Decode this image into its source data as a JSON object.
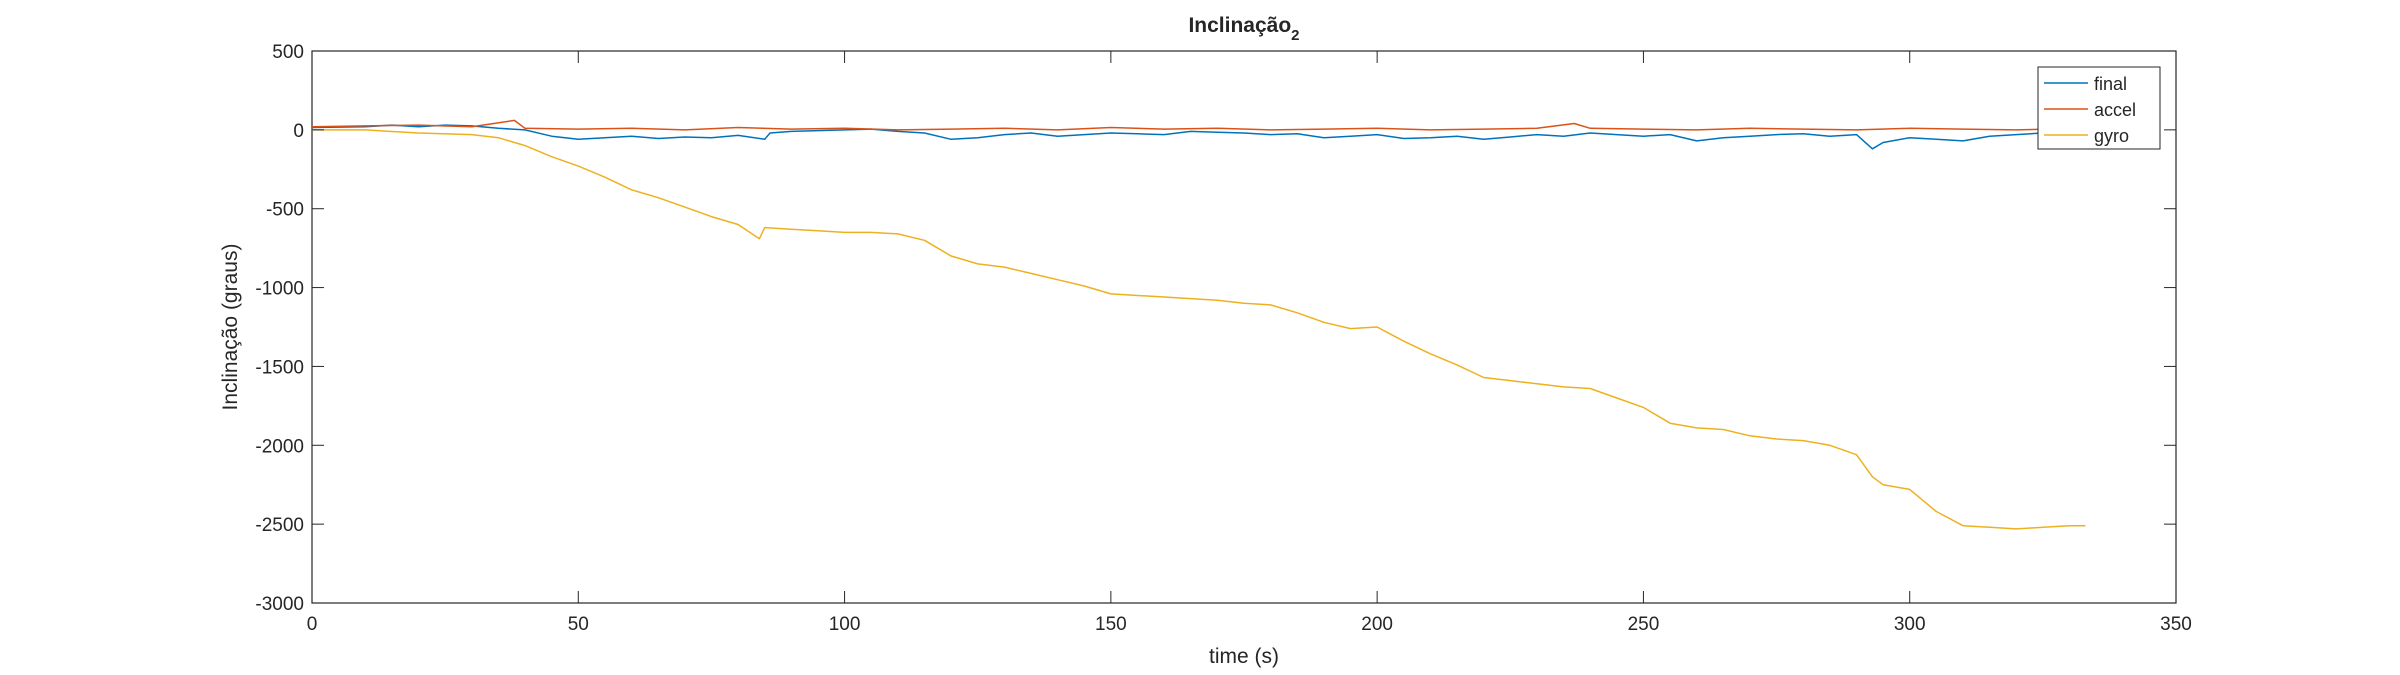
{
  "chart_data": {
    "type": "line",
    "title": "Inclinação",
    "title_subscript": "2",
    "xlabel": "time (s)",
    "ylabel": "Inclinação (graus)",
    "xlim": [
      0,
      350
    ],
    "ylim": [
      -3000,
      500
    ],
    "xticks": [
      0,
      50,
      100,
      150,
      200,
      250,
      300,
      350
    ],
    "yticks": [
      -3000,
      -2500,
      -2000,
      -1500,
      -1000,
      -500,
      0,
      500
    ],
    "grid": false,
    "legend_position": "top-right",
    "series": [
      {
        "name": "final",
        "color": "#0072BD",
        "x": [
          0,
          10,
          15,
          20,
          25,
          30,
          35,
          40,
          45,
          50,
          55,
          60,
          65,
          70,
          75,
          80,
          85,
          86,
          90,
          95,
          100,
          105,
          110,
          115,
          120,
          125,
          130,
          135,
          140,
          145,
          150,
          155,
          160,
          165,
          170,
          175,
          180,
          185,
          190,
          195,
          200,
          205,
          210,
          215,
          220,
          225,
          230,
          235,
          240,
          245,
          250,
          255,
          260,
          265,
          270,
          275,
          280,
          285,
          290,
          293,
          295,
          300,
          305,
          310,
          315,
          320,
          325,
          333
        ],
        "y": [
          15,
          20,
          30,
          20,
          30,
          25,
          10,
          0,
          -40,
          -60,
          -50,
          -40,
          -55,
          -45,
          -50,
          -35,
          -60,
          -20,
          -10,
          -5,
          0,
          5,
          -10,
          -20,
          -60,
          -50,
          -30,
          -20,
          -40,
          -30,
          -20,
          -25,
          -30,
          -10,
          -15,
          -20,
          -30,
          -25,
          -50,
          -40,
          -30,
          -55,
          -50,
          -40,
          -60,
          -45,
          -30,
          -40,
          -20,
          -30,
          -40,
          -30,
          -70,
          -50,
          -40,
          -30,
          -25,
          -40,
          -30,
          -120,
          -80,
          -50,
          -60,
          -70,
          -40,
          -30,
          -20,
          -10
        ]
      },
      {
        "name": "accel",
        "color": "#D95319",
        "x": [
          0,
          10,
          20,
          30,
          38,
          40,
          50,
          60,
          70,
          80,
          90,
          100,
          110,
          120,
          130,
          140,
          150,
          160,
          170,
          180,
          190,
          200,
          210,
          220,
          230,
          237,
          240,
          250,
          260,
          270,
          280,
          290,
          300,
          310,
          320,
          333
        ],
        "y": [
          20,
          25,
          30,
          20,
          60,
          10,
          5,
          10,
          0,
          15,
          5,
          10,
          0,
          5,
          10,
          0,
          15,
          5,
          10,
          0,
          5,
          10,
          0,
          5,
          10,
          40,
          10,
          5,
          0,
          10,
          5,
          0,
          10,
          5,
          0,
          10
        ]
      },
      {
        "name": "gyro",
        "color": "#EDB120",
        "x": [
          0,
          10,
          20,
          30,
          35,
          40,
          45,
          50,
          55,
          60,
          65,
          70,
          75,
          80,
          84,
          85,
          90,
          95,
          100,
          105,
          110,
          115,
          120,
          125,
          130,
          135,
          140,
          145,
          150,
          155,
          160,
          165,
          170,
          175,
          180,
          185,
          190,
          195,
          200,
          205,
          210,
          215,
          220,
          225,
          230,
          235,
          240,
          245,
          250,
          255,
          260,
          265,
          270,
          275,
          280,
          285,
          290,
          293,
          295,
          300,
          305,
          310,
          315,
          320,
          325,
          330,
          333
        ],
        "y": [
          0,
          0,
          -20,
          -30,
          -50,
          -100,
          -170,
          -230,
          -300,
          -380,
          -430,
          -490,
          -550,
          -600,
          -690,
          -620,
          -630,
          -640,
          -650,
          -650,
          -660,
          -700,
          -800,
          -850,
          -870,
          -910,
          -950,
          -990,
          -1040,
          -1050,
          -1060,
          -1070,
          -1080,
          -1100,
          -1110,
          -1160,
          -1220,
          -1260,
          -1250,
          -1340,
          -1420,
          -1490,
          -1570,
          -1590,
          -1610,
          -1630,
          -1640,
          -1700,
          -1760,
          -1860,
          -1890,
          -1900,
          -1940,
          -1960,
          -1970,
          -2000,
          -2060,
          -2200,
          -2250,
          -2280,
          -2420,
          -2510,
          -2520,
          -2530,
          -2520,
          -2510,
          -2510
        ]
      }
    ]
  }
}
